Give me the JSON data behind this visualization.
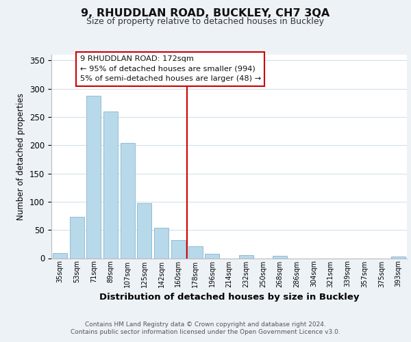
{
  "title": "9, RHUDDLAN ROAD, BUCKLEY, CH7 3QA",
  "subtitle": "Size of property relative to detached houses in Buckley",
  "xlabel": "Distribution of detached houses by size in Buckley",
  "ylabel": "Number of detached properties",
  "bar_labels": [
    "35sqm",
    "53sqm",
    "71sqm",
    "89sqm",
    "107sqm",
    "125sqm",
    "142sqm",
    "160sqm",
    "178sqm",
    "196sqm",
    "214sqm",
    "232sqm",
    "250sqm",
    "268sqm",
    "286sqm",
    "304sqm",
    "321sqm",
    "339sqm",
    "357sqm",
    "375sqm",
    "393sqm"
  ],
  "bar_values": [
    9,
    73,
    287,
    259,
    204,
    97,
    54,
    32,
    21,
    8,
    0,
    5,
    0,
    4,
    0,
    0,
    0,
    0,
    0,
    0,
    3
  ],
  "bar_color": "#b8d9ea",
  "bar_edge_color": "#90bdd4",
  "vline_x": 7.5,
  "vline_color": "#cc0000",
  "ylim": [
    0,
    360
  ],
  "yticks": [
    0,
    50,
    100,
    150,
    200,
    250,
    300,
    350
  ],
  "annotation_title": "9 RHUDDLAN ROAD: 172sqm",
  "annotation_line1": "← 95% of detached houses are smaller (994)",
  "annotation_line2": "5% of semi-detached houses are larger (48) →",
  "footer_line1": "Contains HM Land Registry data © Crown copyright and database right 2024.",
  "footer_line2": "Contains public sector information licensed under the Open Government Licence v3.0.",
  "bg_color": "#edf2f7",
  "plot_bg_color": "#ffffff"
}
